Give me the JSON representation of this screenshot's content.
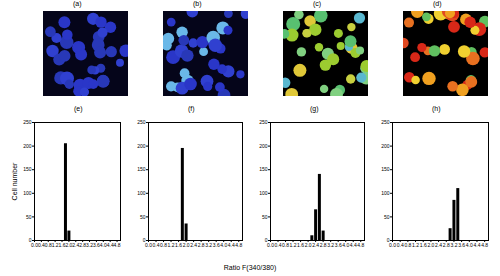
{
  "chart_data": [
    {
      "type": "bar",
      "title": "(e)",
      "y_label": "Cell number",
      "x": [
        1.8,
        2.0
      ],
      "values": [
        205,
        20
      ],
      "xlim": [
        0,
        5
      ],
      "xticks": [
        0,
        0.4,
        0.8,
        1.2,
        1.6,
        2,
        2.4,
        2.8,
        3.2,
        3.6,
        4,
        4.4,
        4.8
      ],
      "ylim": [
        0,
        250
      ],
      "yticks": [
        0,
        50,
        100,
        150,
        200,
        250
      ],
      "color": "#000000"
    },
    {
      "type": "bar",
      "title": "(f)",
      "x": [
        1.8,
        2.0
      ],
      "values": [
        195,
        35
      ],
      "xlim": [
        0,
        5
      ],
      "xticks": [
        0,
        0.4,
        0.8,
        1.2,
        1.6,
        2,
        2.4,
        2.8,
        3.2,
        3.6,
        4,
        4.4,
        4.8
      ],
      "ylim": [
        0,
        250
      ],
      "yticks": [
        0,
        50,
        100,
        150,
        200,
        250
      ],
      "color": "#000000"
    },
    {
      "type": "bar",
      "title": "(g)",
      "x": [
        2.2,
        2.4,
        2.6,
        2.8
      ],
      "values": [
        10,
        65,
        140,
        20
      ],
      "xlim": [
        0,
        5
      ],
      "xticks": [
        0,
        0.4,
        0.8,
        1.2,
        1.6,
        2,
        2.4,
        2.8,
        3.2,
        3.6,
        4,
        4.4,
        4.8
      ],
      "ylim": [
        0,
        250
      ],
      "yticks": [
        0,
        50,
        100,
        150,
        200,
        250
      ],
      "color": "#000000"
    },
    {
      "type": "bar",
      "title": "(h)",
      "x": [
        3.0,
        3.2,
        3.4
      ],
      "values": [
        25,
        85,
        110
      ],
      "xlim": [
        0,
        5
      ],
      "xticks": [
        0,
        0.4,
        0.8,
        1.2,
        1.6,
        2,
        2.4,
        2.8,
        3.2,
        3.6,
        4,
        4.4,
        4.8
      ],
      "ylim": [
        0,
        250
      ],
      "yticks": [
        0,
        50,
        100,
        150,
        200,
        250
      ],
      "color": "#000000"
    }
  ],
  "x_label": "Ratio F(340/380)",
  "images": [
    {
      "label": "(a)"
    },
    {
      "label": "(b)"
    },
    {
      "label": "(c)"
    },
    {
      "label": "(d)"
    }
  ]
}
